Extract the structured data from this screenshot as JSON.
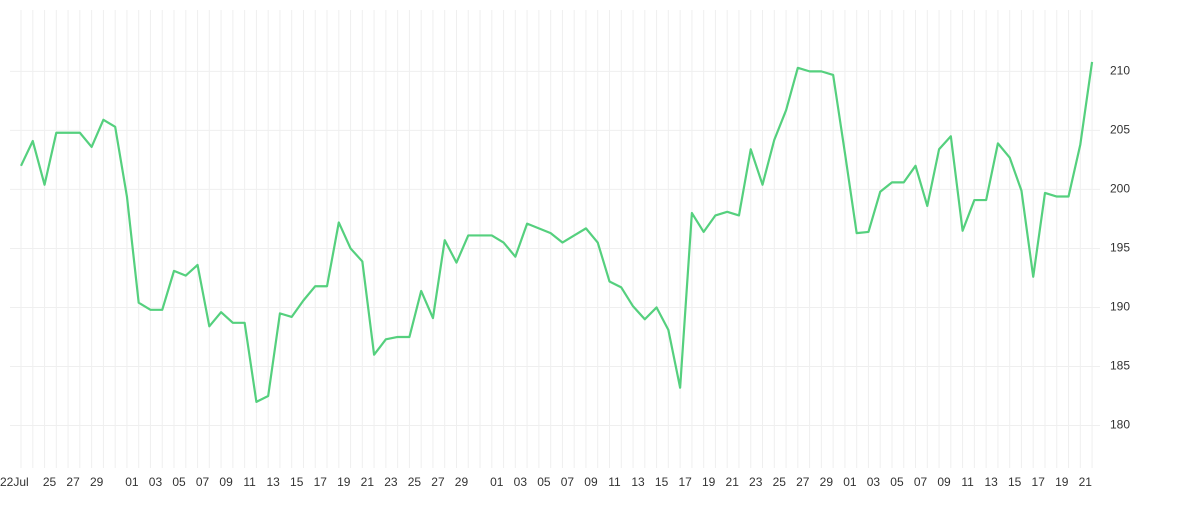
{
  "chart_data": {
    "type": "line",
    "categories": [
      "22Jul",
      null,
      "25",
      null,
      "27",
      null,
      "29",
      null,
      null,
      "01",
      null,
      "03",
      null,
      "05",
      null,
      "07",
      null,
      "09",
      null,
      "11",
      null,
      "13",
      null,
      "15",
      null,
      "17",
      null,
      "19",
      null,
      "21",
      null,
      "23",
      null,
      "25",
      null,
      "27",
      null,
      "29",
      null,
      null,
      "01",
      null,
      "03",
      null,
      "05",
      null,
      "07",
      null,
      "09",
      null,
      "11",
      null,
      "13",
      null,
      "15",
      null,
      "17",
      null,
      "19",
      null,
      "21",
      null,
      "23",
      null,
      "25",
      null,
      "27",
      null,
      "29",
      null,
      "01",
      null,
      "03",
      null,
      "05",
      null,
      "07",
      null,
      "09",
      null,
      "11",
      null,
      "13",
      null,
      "15",
      null,
      "17",
      null,
      "19",
      null,
      "21",
      null
    ],
    "values": [
      202.0,
      204.1,
      200.4,
      204.8,
      204.8,
      204.8,
      203.6,
      205.9,
      205.3,
      199.4,
      190.4,
      189.8,
      189.8,
      193.1,
      192.7,
      193.6,
      188.4,
      189.6,
      188.7,
      188.7,
      182.0,
      182.5,
      189.5,
      189.2,
      190.6,
      191.8,
      191.8,
      197.2,
      195.0,
      193.9,
      186.0,
      187.3,
      187.5,
      187.5,
      191.4,
      189.1,
      195.7,
      193.8,
      196.1,
      196.1,
      196.1,
      195.5,
      194.3,
      197.1,
      196.7,
      196.3,
      195.5,
      196.1,
      196.7,
      195.5,
      192.2,
      191.7,
      190.1,
      189.0,
      190.0,
      188.1,
      183.2,
      198.0,
      196.4,
      197.8,
      198.1,
      197.8,
      203.4,
      200.4,
      204.2,
      206.7,
      210.3,
      210.0,
      210.0,
      209.7,
      203.1,
      196.3,
      196.4,
      199.8,
      200.6,
      200.6,
      202.0,
      198.6,
      203.4,
      204.5,
      196.5,
      199.1,
      199.1,
      203.9,
      202.7,
      199.9,
      192.6,
      199.7,
      199.4,
      199.4,
      203.8,
      210.8
    ],
    "color": "#55d07e",
    "ylim": [
      176.4,
      215.2
    ],
    "yticks": [
      180,
      185,
      190,
      195,
      200,
      205,
      210
    ],
    "grid": true
  }
}
